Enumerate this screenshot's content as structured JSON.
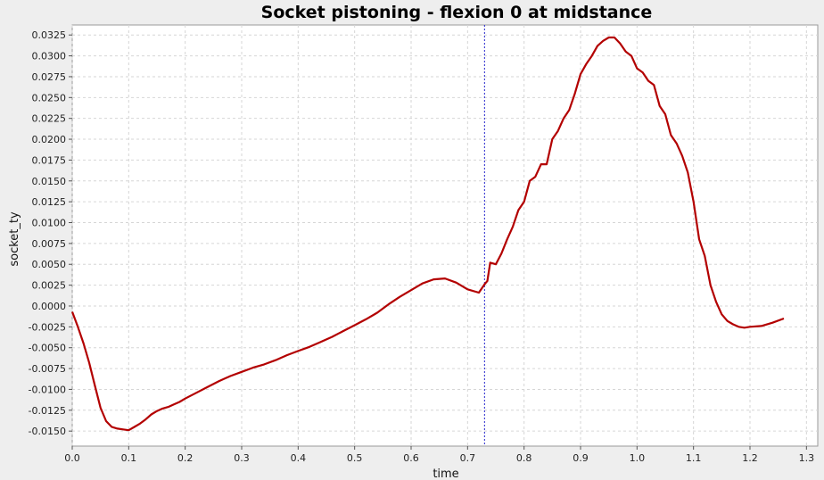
{
  "chart_data": {
    "type": "line",
    "title": "Socket pistoning - flexion 0 at midstance",
    "xlabel": "time",
    "ylabel": "socket_ty",
    "xlim": [
      0.0,
      1.32
    ],
    "ylim": [
      -0.0168,
      0.0337
    ],
    "x_ticks": [
      "0.0",
      "0.1",
      "0.2",
      "0.3",
      "0.4",
      "0.5",
      "0.6",
      "0.7",
      "0.8",
      "0.9",
      "1.0",
      "1.1",
      "1.2",
      "1.3"
    ],
    "y_ticks": [
      "0.0325",
      "0.0300",
      "0.0275",
      "0.0250",
      "0.0225",
      "0.0200",
      "0.0175",
      "0.0150",
      "0.0125",
      "0.0100",
      "0.0075",
      "0.0050",
      "0.0025",
      "0.0000",
      "-0.0025",
      "-0.0050",
      "-0.0075",
      "-0.0100",
      "-0.0125",
      "-0.0150"
    ],
    "grid": true,
    "marker_line": {
      "x": 0.73,
      "color": "#2222cc"
    },
    "series": [
      {
        "color": "#b30000",
        "x": [
          0.0,
          0.01,
          0.02,
          0.03,
          0.04,
          0.05,
          0.06,
          0.07,
          0.08,
          0.09,
          0.1,
          0.11,
          0.12,
          0.13,
          0.14,
          0.15,
          0.16,
          0.17,
          0.18,
          0.19,
          0.2,
          0.22,
          0.24,
          0.26,
          0.28,
          0.3,
          0.32,
          0.34,
          0.36,
          0.38,
          0.4,
          0.42,
          0.44,
          0.46,
          0.48,
          0.5,
          0.52,
          0.54,
          0.56,
          0.58,
          0.6,
          0.62,
          0.64,
          0.66,
          0.68,
          0.7,
          0.72,
          0.73,
          0.735,
          0.74,
          0.75,
          0.76,
          0.77,
          0.78,
          0.79,
          0.8,
          0.81,
          0.82,
          0.83,
          0.84,
          0.85,
          0.86,
          0.87,
          0.88,
          0.89,
          0.9,
          0.91,
          0.92,
          0.93,
          0.94,
          0.95,
          0.96,
          0.97,
          0.98,
          0.99,
          1.0,
          1.01,
          1.02,
          1.03,
          1.04,
          1.05,
          1.06,
          1.07,
          1.08,
          1.09,
          1.1,
          1.11,
          1.12,
          1.13,
          1.14,
          1.15,
          1.16,
          1.17,
          1.18,
          1.19,
          1.2,
          1.22,
          1.24,
          1.26
        ],
        "y": [
          -0.0007,
          -0.0025,
          -0.0045,
          -0.0068,
          -0.0095,
          -0.0122,
          -0.0138,
          -0.0145,
          -0.0147,
          -0.0148,
          -0.0149,
          -0.0145,
          -0.0141,
          -0.0136,
          -0.013,
          -0.0126,
          -0.0123,
          -0.0121,
          -0.0118,
          -0.0115,
          -0.0111,
          -0.0104,
          -0.0097,
          -0.009,
          -0.0084,
          -0.0079,
          -0.0074,
          -0.007,
          -0.0065,
          -0.0059,
          -0.0054,
          -0.0049,
          -0.0043,
          -0.0037,
          -0.003,
          -0.0023,
          -0.0016,
          -0.0008,
          0.0002,
          0.0011,
          0.0019,
          0.0027,
          0.0032,
          0.0033,
          0.0028,
          0.002,
          0.0016,
          0.0026,
          0.003,
          0.0052,
          0.005,
          0.0063,
          0.008,
          0.0095,
          0.0115,
          0.0125,
          0.015,
          0.0155,
          0.017,
          0.017,
          0.02,
          0.021,
          0.0225,
          0.0235,
          0.0255,
          0.0278,
          0.029,
          0.03,
          0.0312,
          0.0318,
          0.0322,
          0.0322,
          0.0315,
          0.0305,
          0.03,
          0.0285,
          0.028,
          0.027,
          0.0265,
          0.024,
          0.023,
          0.0205,
          0.0195,
          0.018,
          0.016,
          0.0125,
          0.008,
          0.006,
          0.0025,
          0.0005,
          -0.001,
          -0.0018,
          -0.0022,
          -0.0025,
          -0.0026,
          -0.0025,
          -0.0024,
          -0.002,
          -0.0015
        ]
      }
    ]
  }
}
